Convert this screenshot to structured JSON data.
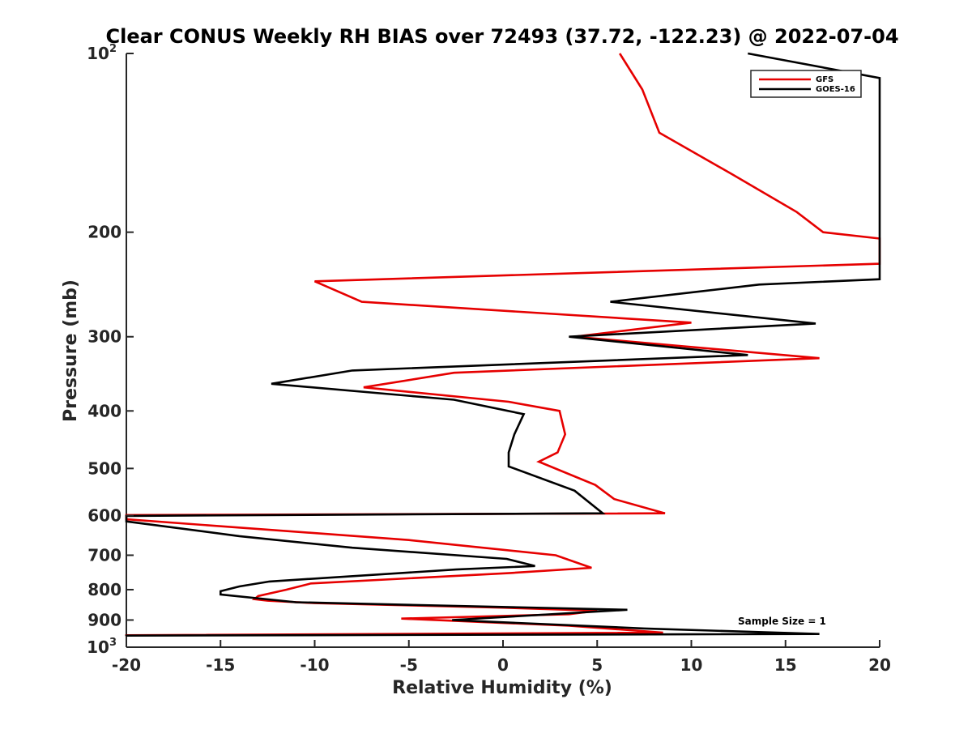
{
  "chart_data": {
    "type": "line",
    "title": "Clear CONUS Weekly RH BIAS over 72493 (37.72, -122.23) @ 2022-07-04",
    "xlabel": "Relative Humidity (%)",
    "ylabel": "Pressure (mb)",
    "xlim": [
      -20,
      20
    ],
    "ylim": [
      100,
      1000
    ],
    "y_scale": "log",
    "y_reversed": true,
    "grid": false,
    "legend_position": "top-right",
    "x_ticks": [
      "-20",
      "-15",
      "-10",
      "-5",
      "0",
      "5",
      "10",
      "15",
      "20"
    ],
    "y_ticks": [
      {
        "value": 100,
        "label": "10",
        "sup": "2"
      },
      {
        "value": 200,
        "label": "200"
      },
      {
        "value": 300,
        "label": "300"
      },
      {
        "value": 400,
        "label": "400"
      },
      {
        "value": 500,
        "label": "500"
      },
      {
        "value": 600,
        "label": "600"
      },
      {
        "value": 700,
        "label": "700"
      },
      {
        "value": 800,
        "label": "800"
      },
      {
        "value": 900,
        "label": "900"
      },
      {
        "value": 1000,
        "label": "10",
        "sup": "3"
      }
    ],
    "annotation": "Sample Size = 1",
    "series": [
      {
        "name": "GFS",
        "color": "#e60000",
        "points": [
          [
            6.2,
            100
          ],
          [
            7.4,
            115
          ],
          [
            8.3,
            136
          ],
          [
            12.2,
            160
          ],
          [
            15.6,
            185
          ],
          [
            17,
            200
          ],
          [
            20,
            205
          ],
          [
            20,
            226
          ],
          [
            -10,
            242
          ],
          [
            -7.5,
            262
          ],
          [
            10,
            284
          ],
          [
            3.8,
            300
          ],
          [
            16.8,
            326
          ],
          [
            -2.6,
            345
          ],
          [
            -7.4,
            365
          ],
          [
            0.3,
            386
          ],
          [
            3,
            400
          ],
          [
            3.3,
            438
          ],
          [
            2.9,
            470
          ],
          [
            1.9,
            487
          ],
          [
            4.9,
            533
          ],
          [
            5.9,
            563
          ],
          [
            8.6,
            595
          ],
          [
            -20,
            599
          ],
          [
            -20,
            609
          ],
          [
            -5,
            660
          ],
          [
            2.8,
            700
          ],
          [
            4.7,
            735
          ],
          [
            0.4,
            750
          ],
          [
            -10.2,
            781
          ],
          [
            -11.5,
            800
          ],
          [
            -13,
            820
          ],
          [
            -13.2,
            830
          ],
          [
            -12.5,
            835
          ],
          [
            -10,
            843
          ],
          [
            0,
            858
          ],
          [
            5,
            868
          ],
          [
            3.5,
            880
          ],
          [
            -5.4,
            895
          ],
          [
            3.5,
            920
          ],
          [
            8.5,
            945
          ],
          [
            -20,
            955
          ],
          [
            -20,
            958
          ]
        ]
      },
      {
        "name": "GOES-16",
        "color": "#000000",
        "points": [
          [
            13,
            100
          ],
          [
            20,
            110
          ],
          [
            20,
            240
          ],
          [
            13.6,
            245
          ],
          [
            5.7,
            262
          ],
          [
            16.6,
            285
          ],
          [
            3.5,
            300
          ],
          [
            13,
            322
          ],
          [
            -8,
            342
          ],
          [
            -12.3,
            360
          ],
          [
            -2.6,
            383
          ],
          [
            1.1,
            405
          ],
          [
            0.6,
            438
          ],
          [
            0.3,
            470
          ],
          [
            0.3,
            496
          ],
          [
            3.8,
            545
          ],
          [
            5.3,
            595
          ],
          [
            -20,
            601
          ],
          [
            -20,
            614
          ],
          [
            -14,
            650
          ],
          [
            -8,
            680
          ],
          [
            0.2,
            710
          ],
          [
            1.7,
            730
          ],
          [
            -2.5,
            740
          ],
          [
            -12.4,
            775
          ],
          [
            -14,
            790
          ],
          [
            -15,
            805
          ],
          [
            -15,
            815
          ],
          [
            -11,
            840
          ],
          [
            6.6,
            865
          ],
          [
            -2.7,
            900
          ],
          [
            7.5,
            930
          ],
          [
            16.8,
            950
          ],
          [
            -20,
            956
          ],
          [
            -20,
            958
          ]
        ]
      }
    ]
  }
}
